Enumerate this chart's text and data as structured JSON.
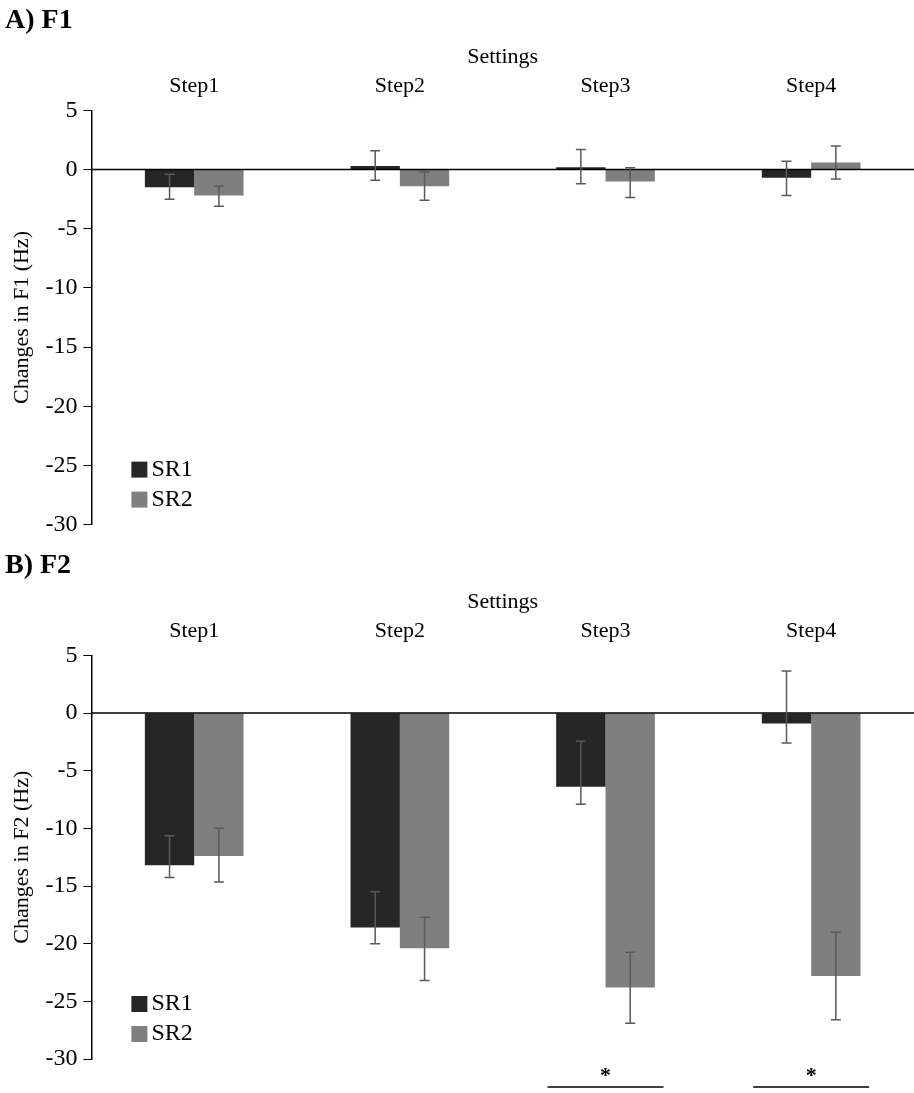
{
  "chart_data": [
    {
      "type": "bar",
      "title": "A) F1",
      "xlabel": "Settings",
      "ylabel": "Changes in F1 (Hz)",
      "categories": [
        "Step1",
        "Step2",
        "Step3",
        "Step4"
      ],
      "series": [
        {
          "name": "SR1",
          "color": "#262626",
          "values": [
            -1.5,
            0.3,
            0.2,
            -0.7
          ],
          "errors": [
            [
              -2.5,
              -0.4
            ],
            [
              -0.9,
              1.6
            ],
            [
              -1.2,
              1.7
            ],
            [
              -2.2,
              0.7
            ]
          ]
        },
        {
          "name": "SR2",
          "color": "#7f7f7f",
          "values": [
            -2.2,
            -1.4,
            -1.0,
            0.6
          ],
          "errors": [
            [
              -3.1,
              -1.4
            ],
            [
              -2.6,
              -0.2
            ],
            [
              -2.35,
              0.15
            ],
            [
              -0.8,
              2.0
            ]
          ]
        }
      ],
      "ylim": [
        -30,
        5
      ],
      "yticks": [
        5,
        0,
        -5,
        -10,
        -15,
        -20,
        -25,
        -30
      ],
      "legend": "bottom left"
    },
    {
      "type": "bar",
      "title": "B) F2",
      "xlabel": "Settings",
      "ylabel": "Changes in F2 (Hz)",
      "categories": [
        "Step1",
        "Step2",
        "Step3",
        "Step4"
      ],
      "series": [
        {
          "name": "SR1",
          "color": "#262626",
          "values": [
            -13.2,
            -18.6,
            -6.4,
            -0.9
          ],
          "errors": [
            [
              -14.25,
              -10.65
            ],
            [
              -20.0,
              -15.5
            ],
            [
              -7.9,
              -2.45
            ],
            [
              -2.6,
              3.65
            ]
          ]
        },
        {
          "name": "SR2",
          "color": "#7f7f7f",
          "values": [
            -12.4,
            -20.4,
            -23.8,
            -22.8
          ],
          "errors": [
            [
              -14.65,
              -10.0
            ],
            [
              -23.2,
              -17.7
            ],
            [
              -26.9,
              -20.75
            ],
            [
              -26.6,
              -19.0
            ]
          ]
        }
      ],
      "ylim": [
        -30,
        5
      ],
      "yticks": [
        5,
        0,
        -5,
        -10,
        -15,
        -20,
        -25,
        -30
      ],
      "legend": "bottom left",
      "annotations": [
        "*",
        "*"
      ]
    }
  ]
}
